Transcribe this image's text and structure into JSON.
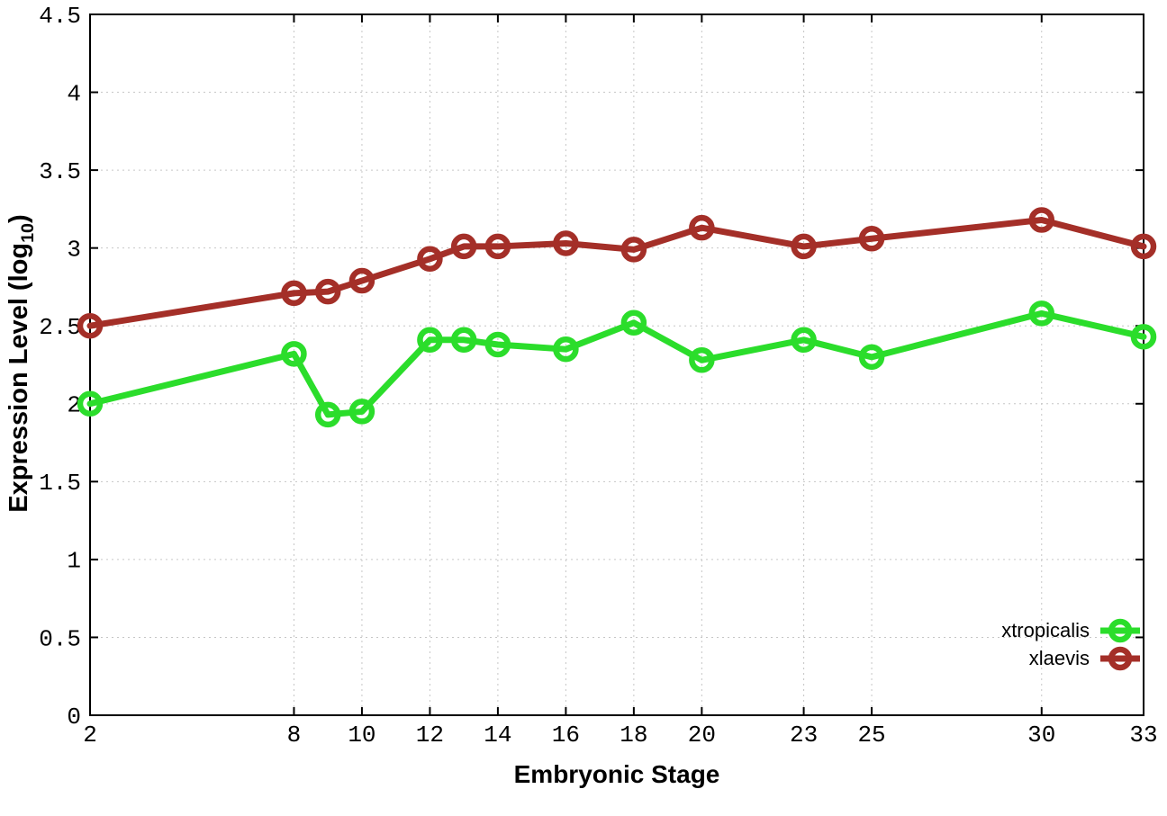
{
  "chart_data": {
    "type": "line",
    "title": "",
    "xlabel": "Embryonic Stage",
    "ylabel": "Expression Level (log10)",
    "ylabel_parts": {
      "prefix": "Expression Level (log",
      "sub": "10",
      "suffix": ")"
    },
    "xlim": [
      2,
      33
    ],
    "ylim": [
      0,
      4.5
    ],
    "x_ticks": [
      2,
      8,
      10,
      12,
      14,
      16,
      18,
      20,
      23,
      25,
      30,
      33
    ],
    "y_ticks": [
      0,
      0.5,
      1,
      1.5,
      2,
      2.5,
      3,
      3.5,
      4,
      4.5
    ],
    "grid": true,
    "legend_position": "inside-bottom-right",
    "marker": "open-circle",
    "x": [
      2,
      8,
      9,
      10,
      12,
      13,
      14,
      16,
      18,
      20,
      23,
      25,
      30,
      33
    ],
    "series": [
      {
        "name": "xtropicalis",
        "color": "#2bdd2b",
        "values": [
          2.0,
          2.32,
          1.93,
          1.95,
          2.41,
          2.41,
          2.38,
          2.35,
          2.52,
          2.28,
          2.41,
          2.3,
          2.58,
          2.43
        ]
      },
      {
        "name": "xlaevis",
        "color": "#a42f28",
        "values": [
          2.5,
          2.71,
          2.72,
          2.79,
          2.93,
          3.01,
          3.01,
          3.03,
          2.99,
          3.13,
          3.01,
          3.06,
          3.18,
          3.01
        ]
      }
    ],
    "colors": {
      "background": "#ffffff",
      "grid": "#c6c6c6",
      "axis": "#000000",
      "tick_text": "#000000"
    }
  }
}
